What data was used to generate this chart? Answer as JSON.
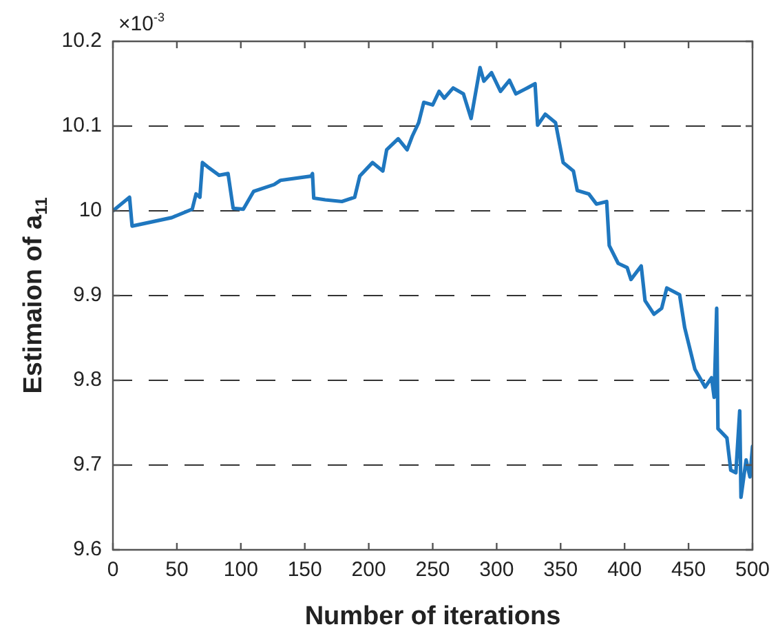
{
  "chart_data": {
    "type": "line",
    "xlabel": "Number of iterations",
    "ylabel": "Estimaion of a$_{11}$",
    "annotations": [
      "×10$^{-3}$"
    ],
    "xlim": [
      0,
      500
    ],
    "xticks": [
      0,
      50,
      100,
      150,
      200,
      250,
      300,
      350,
      400,
      450,
      500
    ],
    "ylim": [
      9.6,
      10.2
    ],
    "yticks": [
      9.6,
      9.7,
      9.8,
      9.9,
      10,
      10.1,
      10.2
    ],
    "grid": "y",
    "legend": false,
    "marker": "none",
    "line_style": "solid",
    "series": [
      {
        "color": "#1f77bf",
        "x": [
          0,
          13,
          15,
          46,
          62,
          65,
          68,
          70,
          74,
          83,
          90,
          94,
          102,
          110,
          126,
          131,
          155,
          156,
          157,
          166,
          179,
          189,
          193,
          203,
          211,
          214,
          223,
          230,
          234,
          239,
          243,
          250,
          255,
          259,
          266,
          274,
          280,
          287,
          290,
          296,
          303,
          310,
          315,
          324,
          330,
          332,
          338,
          346,
          352,
          360,
          363,
          372,
          378,
          386,
          388,
          395,
          402,
          405,
          413,
          416,
          423,
          429,
          433,
          443,
          447,
          455,
          463,
          468,
          470,
          472,
          473,
          480,
          483,
          487,
          490,
          491,
          495,
          498,
          500
        ],
        "values": [
          10.0,
          10.016,
          9.982,
          9.992,
          10.002,
          10.02,
          10.016,
          10.057,
          10.052,
          10.042,
          10.044,
          10.003,
          10.002,
          10.023,
          10.031,
          10.036,
          10.041,
          10.044,
          10.015,
          10.013,
          10.011,
          10.016,
          10.041,
          10.057,
          10.047,
          10.072,
          10.085,
          10.072,
          10.088,
          10.104,
          10.128,
          10.125,
          10.141,
          10.133,
          10.145,
          10.138,
          10.109,
          10.169,
          10.153,
          10.163,
          10.141,
          10.154,
          10.138,
          10.145,
          10.15,
          10.101,
          10.114,
          10.104,
          10.057,
          10.047,
          10.024,
          10.02,
          10.008,
          10.011,
          9.959,
          9.938,
          9.933,
          9.919,
          9.935,
          9.894,
          9.878,
          9.885,
          9.909,
          9.901,
          9.862,
          9.813,
          9.792,
          9.803,
          9.78,
          9.885,
          9.743,
          9.732,
          9.694,
          9.691,
          9.764,
          9.662,
          9.706,
          9.686,
          9.722
        ]
      }
    ]
  }
}
